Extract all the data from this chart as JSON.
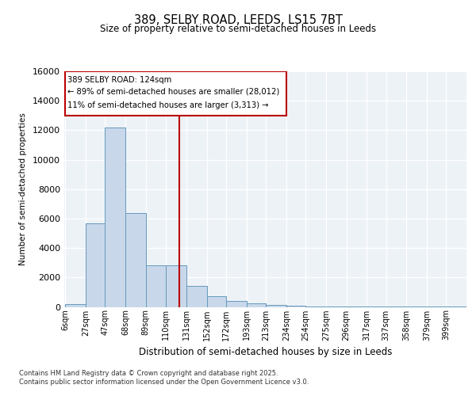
{
  "title1": "389, SELBY ROAD, LEEDS, LS15 7BT",
  "title2": "Size of property relative to semi-detached houses in Leeds",
  "xlabel": "Distribution of semi-detached houses by size in Leeds",
  "ylabel": "Number of semi-detached properties",
  "annotation_line1": "389 SELBY ROAD: 124sqm",
  "annotation_line2": "← 89% of semi-detached houses are smaller (28,012)",
  "annotation_line3": "11% of semi-detached houses are larger (3,313) →",
  "footer1": "Contains HM Land Registry data © Crown copyright and database right 2025.",
  "footer2": "Contains public sector information licensed under the Open Government Licence v3.0.",
  "vline_x": 124,
  "bar_edges": [
    6,
    27,
    47,
    68,
    89,
    110,
    131,
    152,
    172,
    193,
    213,
    234,
    254,
    275,
    296,
    317,
    337,
    358,
    379,
    399,
    420
  ],
  "bar_heights": [
    200,
    5700,
    12200,
    6400,
    2800,
    2800,
    1400,
    700,
    400,
    220,
    130,
    70,
    40,
    20,
    10,
    5,
    3,
    2,
    1,
    1
  ],
  "bar_color": "#c8d8ea",
  "bar_edge_color": "#6699bb",
  "vline_color": "#bb0000",
  "box_color": "#bb0000",
  "background_color": "#edf2f7",
  "ylim": [
    0,
    16000
  ],
  "yticks": [
    0,
    2000,
    4000,
    6000,
    8000,
    10000,
    12000,
    14000,
    16000
  ]
}
